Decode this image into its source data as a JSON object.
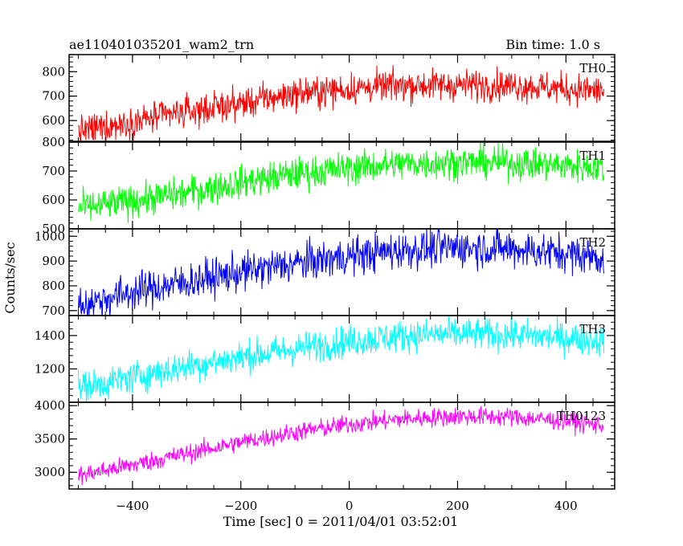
{
  "header": {
    "left_title": "ae110401035201_wam2_trn",
    "right_title": "Bin time: 1.0 s"
  },
  "chart_data": {
    "type": "line",
    "xlabel": "Time [sec] 0 = 2011/04/01 03:52:01",
    "ylabel": "Counts/sec",
    "xlim": [
      -517,
      490
    ],
    "xticks": [
      -400,
      -200,
      0,
      200,
      400
    ],
    "xtick_labels": [
      "−400",
      "−200",
      "0",
      "200",
      "400"
    ],
    "bin_time_s": 1.0,
    "x_range_data": [
      -500,
      470
    ],
    "panels": [
      {
        "name": "TH0",
        "color": "#ff0000",
        "ylim": [
          515,
          870
        ],
        "yticks": [
          600,
          700,
          800
        ],
        "trend": [
          [
            -500,
            555
          ],
          [
            -400,
            595
          ],
          [
            -300,
            635
          ],
          [
            -200,
            670
          ],
          [
            -100,
            710
          ],
          [
            0,
            730
          ],
          [
            100,
            745
          ],
          [
            200,
            745
          ],
          [
            300,
            745
          ],
          [
            400,
            730
          ],
          [
            470,
            720
          ]
        ],
        "noise": 32
      },
      {
        "name": "TH1",
        "color": "#00ff00",
        "ylim": [
          500,
          800
        ],
        "yticks": [
          500,
          600,
          700,
          800
        ],
        "trend": [
          [
            -500,
            570
          ],
          [
            -400,
            595
          ],
          [
            -300,
            625
          ],
          [
            -200,
            660
          ],
          [
            -100,
            690
          ],
          [
            0,
            710
          ],
          [
            100,
            725
          ],
          [
            200,
            730
          ],
          [
            300,
            728
          ],
          [
            400,
            718
          ],
          [
            470,
            712
          ]
        ],
        "noise": 28
      },
      {
        "name": "TH2",
        "color": "#0000ff",
        "ylim": [
          680,
          1030
        ],
        "yticks": [
          700,
          800,
          900,
          1000
        ],
        "trend": [
          [
            -500,
            720
          ],
          [
            -400,
            775
          ],
          [
            -300,
            815
          ],
          [
            -200,
            855
          ],
          [
            -100,
            890
          ],
          [
            0,
            920
          ],
          [
            100,
            945
          ],
          [
            200,
            955
          ],
          [
            300,
            950
          ],
          [
            400,
            930
          ],
          [
            470,
            915
          ]
        ],
        "noise": 38
      },
      {
        "name": "TH3",
        "color": "#00ffff",
        "ylim": [
          1000,
          1520
        ],
        "yticks": [
          1200,
          1400
        ],
        "trend": [
          [
            -500,
            1085
          ],
          [
            -400,
            1150
          ],
          [
            -300,
            1215
          ],
          [
            -200,
            1270
          ],
          [
            -100,
            1320
          ],
          [
            0,
            1365
          ],
          [
            100,
            1400
          ],
          [
            200,
            1410
          ],
          [
            300,
            1405
          ],
          [
            400,
            1385
          ],
          [
            470,
            1370
          ]
        ],
        "noise": 48
      },
      {
        "name": "TH0123",
        "color": "#ff00ff",
        "ylim": [
          2750,
          4050
        ],
        "yticks": [
          3000,
          3500,
          4000
        ],
        "trend": [
          [
            -500,
            2950
          ],
          [
            -400,
            3110
          ],
          [
            -300,
            3280
          ],
          [
            -200,
            3450
          ],
          [
            -100,
            3600
          ],
          [
            0,
            3720
          ],
          [
            100,
            3800
          ],
          [
            200,
            3840
          ],
          [
            300,
            3830
          ],
          [
            400,
            3770
          ],
          [
            470,
            3700
          ]
        ],
        "noise": 70
      }
    ]
  }
}
